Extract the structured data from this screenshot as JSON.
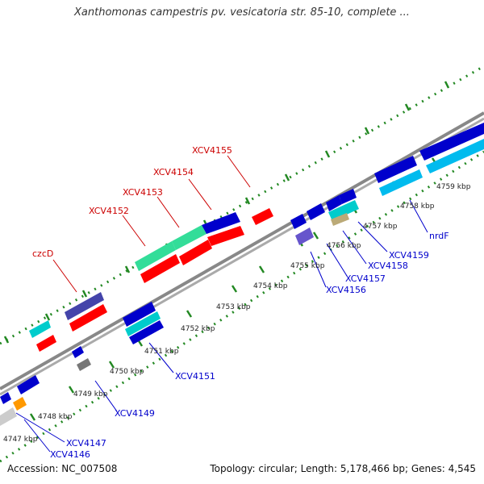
{
  "title": "Xanthomonas campestris pv. vesicatoria str. 85-10, complete ...",
  "footer": {
    "accession": "Accession: NC_007508",
    "summary": "Topology: circular; Length: 5,178,466 bp; Genes: 4,545"
  },
  "colors": {
    "gene_red": "#ff0000",
    "gene_blue": "#0000cc",
    "gene_cyan": "#00cccc",
    "gene_green": "#33dd99",
    "gene_purple": "#4444aa",
    "gene_gray": "#777777",
    "gene_orange": "#ff9900",
    "label_red": "#cc0000",
    "label_blue": "#0000cc",
    "tick_green": "#228822",
    "backbone": "#888888"
  },
  "kbp_labels": [
    "4747 kbp",
    "4748 kbp",
    "4749 kbp",
    "4750 kbp",
    "4751 kbp",
    "4752 kbp",
    "4753 kbp",
    "4754 kbp",
    "4755 kbp",
    "4756 kbp",
    "4757 kbp",
    "4758 kbp",
    "4759 kbp"
  ],
  "gene_labels": {
    "czcD": "czcD",
    "XCV4152": "XCV4152",
    "XCV4153": "XCV4153",
    "XCV4154": "XCV4154",
    "XCV4155": "XCV4155",
    "XCV4146": "XCV4146",
    "XCV4147": "XCV4147",
    "XCV4149": "XCV4149",
    "XCV4151": "XCV4151",
    "XCV4156": "XCV4156",
    "XCV4157": "XCV4157",
    "XCV4158": "XCV4158",
    "XCV4159": "XCV4159",
    "nrdF": "nrdF"
  }
}
